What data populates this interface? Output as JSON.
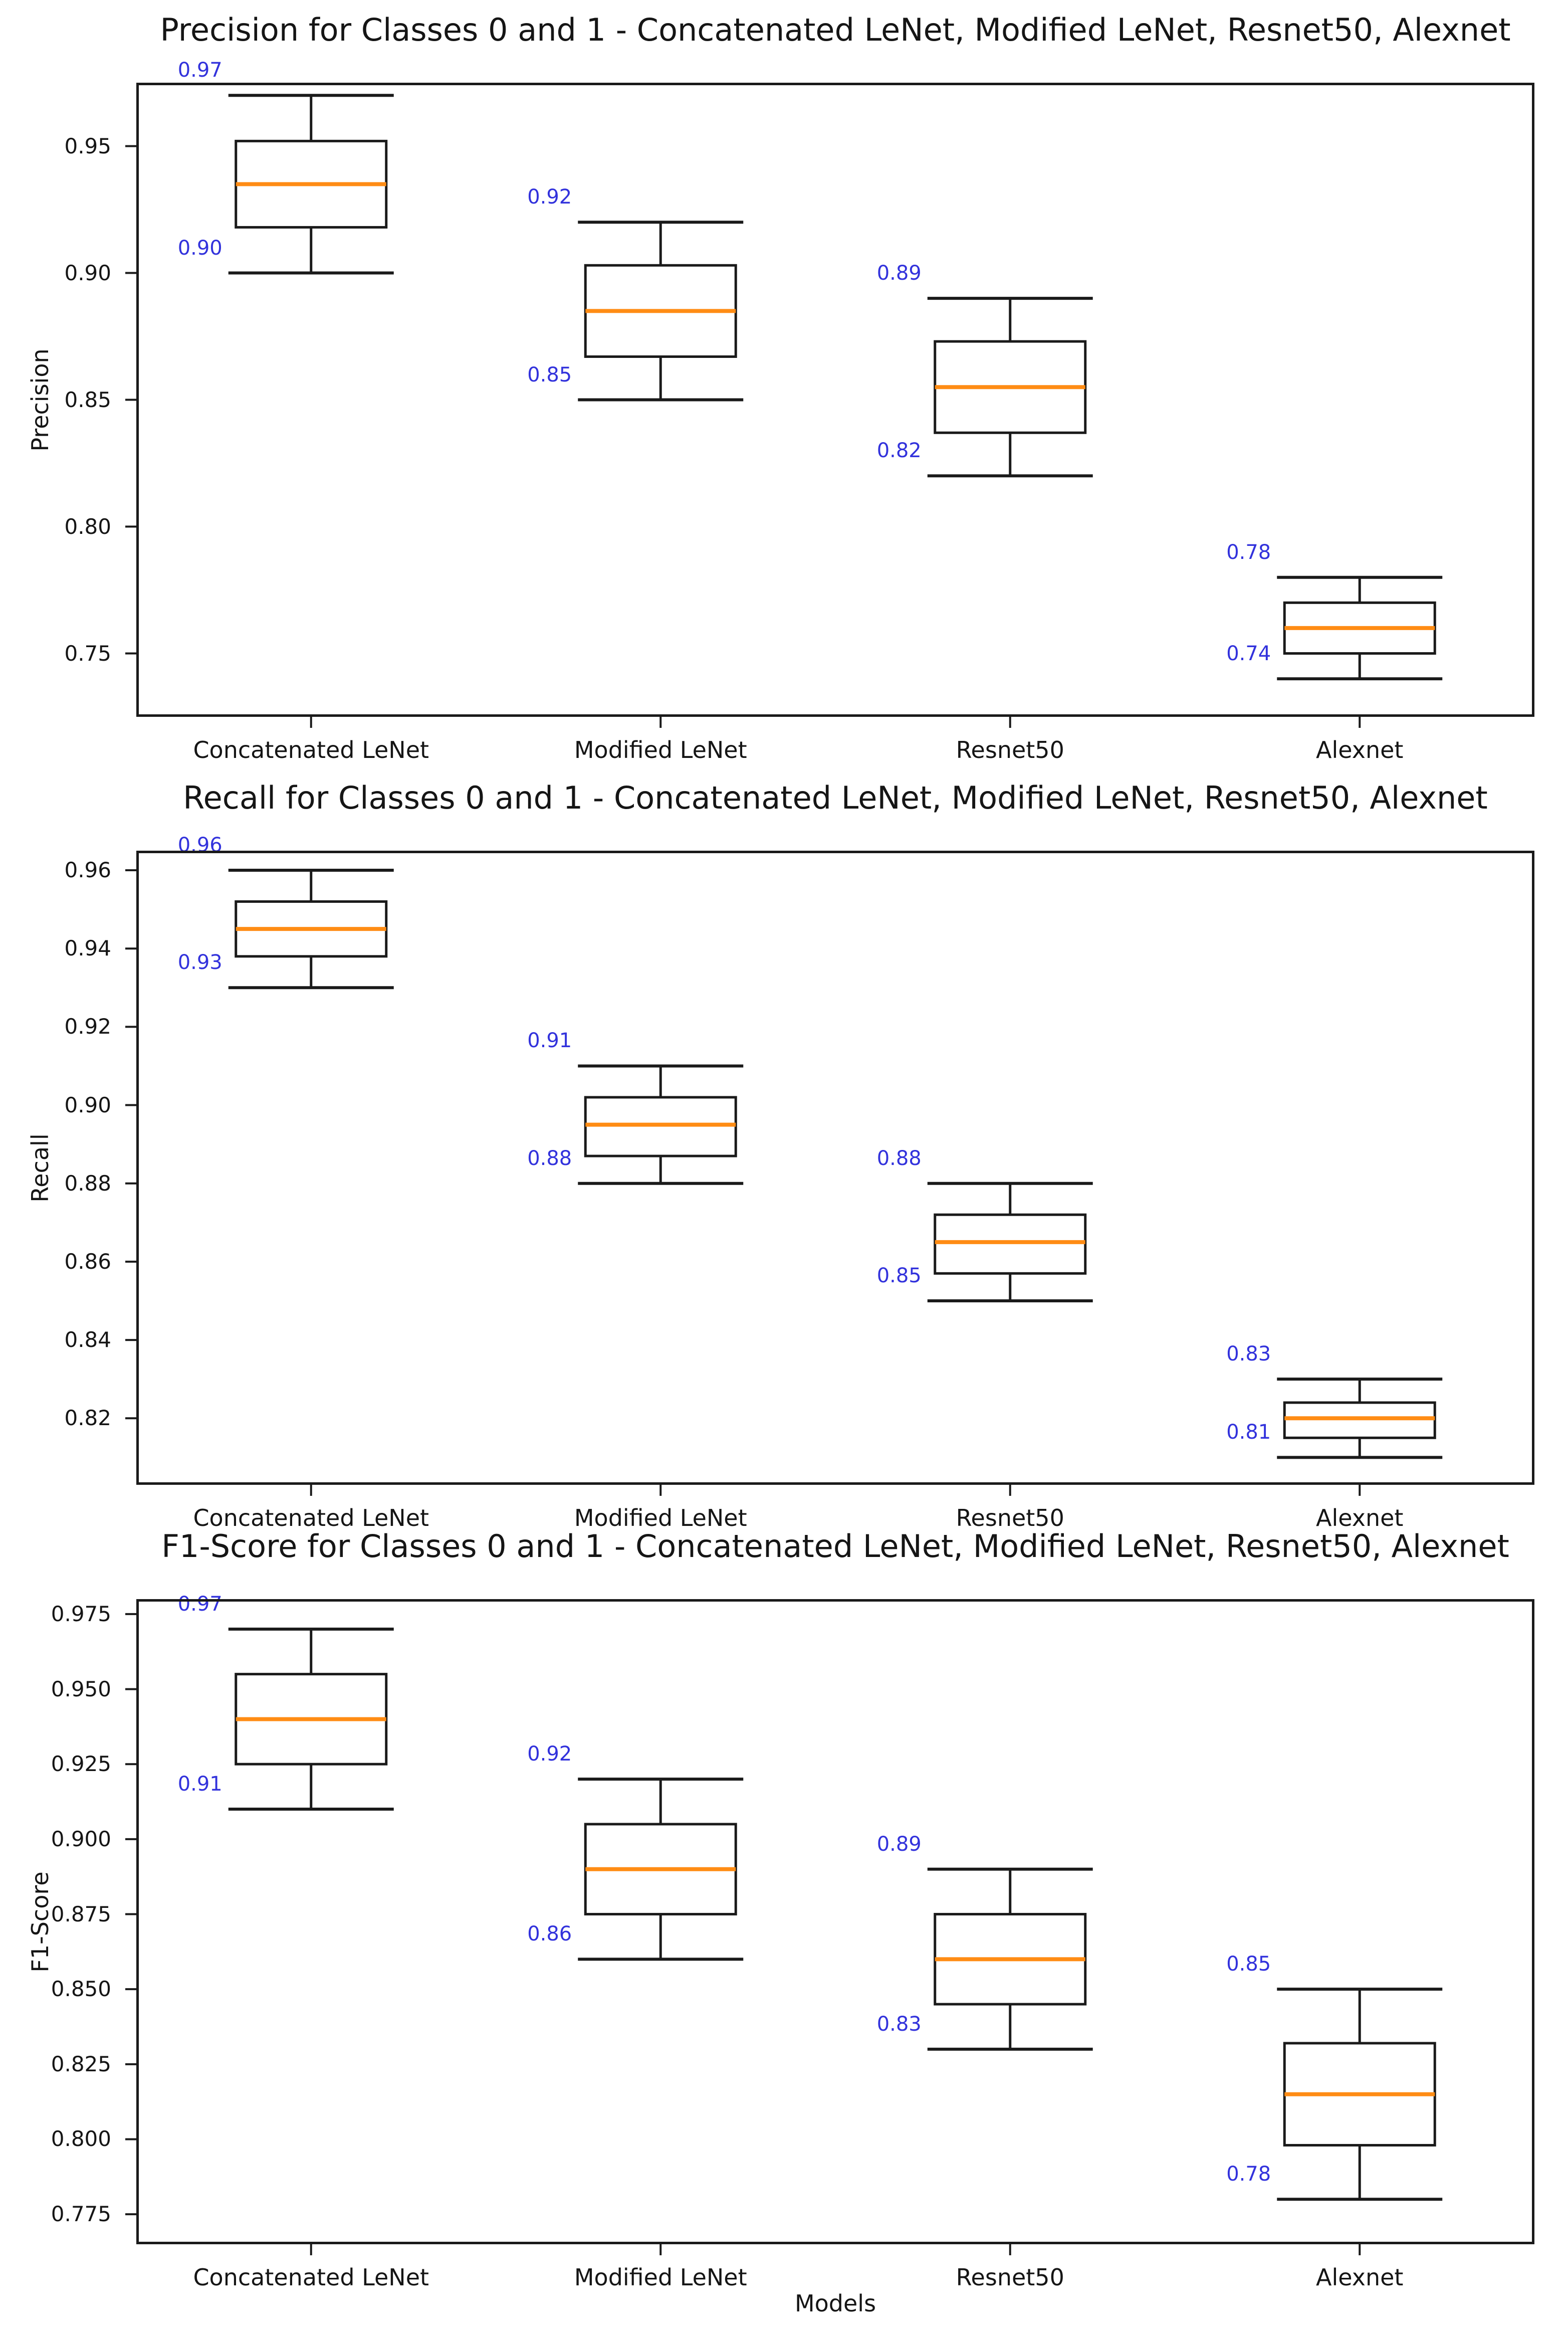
{
  "figure": {
    "background": "#ffffff",
    "text_color": "#151515",
    "box_line_color": "#1a1a1a",
    "median_color": "#ff8c14",
    "annotation_color": "#3232dc",
    "xlabel": "Models",
    "categories": [
      "Concatenated LeNet",
      "Modified LeNet",
      "Resnet50",
      "Alexnet"
    ]
  },
  "chart_data": [
    {
      "type": "boxplot",
      "title": "Precision for Classes 0 and 1 - Concatenated LeNet, Modified LeNet, Resnet50, Alexnet",
      "ylabel": "Precision",
      "xlabel": "",
      "grid": false,
      "legend": "none",
      "categories": [
        "Concatenated LeNet",
        "Modified LeNet",
        "Resnet50",
        "Alexnet"
      ],
      "yticks": [
        0.95,
        0.9,
        0.85,
        0.8,
        0.75
      ],
      "ytick_labels": [
        "0.95",
        "0.90",
        "0.85",
        "0.80",
        "0.75"
      ],
      "ylim": [
        0.725,
        0.975
      ],
      "series": [
        {
          "category": "Concatenated LeNet",
          "whislo": 0.9,
          "q1": 0.918,
          "med": 0.935,
          "q3": 0.952,
          "whishi": 0.97,
          "annotation_max": "0.97",
          "annotation_min": "0.90"
        },
        {
          "category": "Modified LeNet",
          "whislo": 0.85,
          "q1": 0.867,
          "med": 0.885,
          "q3": 0.903,
          "whishi": 0.92,
          "annotation_max": "0.92",
          "annotation_min": "0.85"
        },
        {
          "category": "Resnet50",
          "whislo": 0.82,
          "q1": 0.837,
          "med": 0.855,
          "q3": 0.873,
          "whishi": 0.89,
          "annotation_max": "0.89",
          "annotation_min": "0.82"
        },
        {
          "category": "Alexnet",
          "whislo": 0.74,
          "q1": 0.75,
          "med": 0.76,
          "q3": 0.77,
          "whishi": 0.78,
          "annotation_max": "0.78",
          "annotation_min": "0.74"
        }
      ]
    },
    {
      "type": "boxplot",
      "title": "Recall for Classes 0 and 1 - Concatenated LeNet, Modified LeNet, Resnet50, Alexnet",
      "ylabel": "Recall",
      "xlabel": "",
      "grid": false,
      "legend": "none",
      "categories": [
        "Concatenated LeNet",
        "Modified LeNet",
        "Resnet50",
        "Alexnet"
      ],
      "yticks": [
        0.96,
        0.94,
        0.92,
        0.9,
        0.88,
        0.86,
        0.84,
        0.82
      ],
      "ytick_labels": [
        "0.96",
        "0.94",
        "0.92",
        "0.90",
        "0.88",
        "0.86",
        "0.84",
        "0.82"
      ],
      "ylim": [
        0.803,
        0.965
      ],
      "series": [
        {
          "category": "Concatenated LeNet",
          "whislo": 0.93,
          "q1": 0.938,
          "med": 0.945,
          "q3": 0.952,
          "whishi": 0.96,
          "annotation_max": "0.96",
          "annotation_min": "0.93"
        },
        {
          "category": "Modified LeNet",
          "whislo": 0.88,
          "q1": 0.887,
          "med": 0.895,
          "q3": 0.902,
          "whishi": 0.91,
          "annotation_max": "0.91",
          "annotation_min": "0.88"
        },
        {
          "category": "Resnet50",
          "whislo": 0.85,
          "q1": 0.857,
          "med": 0.865,
          "q3": 0.872,
          "whishi": 0.88,
          "annotation_max": "0.88",
          "annotation_min": "0.85"
        },
        {
          "category": "Alexnet",
          "whislo": 0.81,
          "q1": 0.815,
          "med": 0.82,
          "q3": 0.824,
          "whishi": 0.83,
          "annotation_max": "0.83",
          "annotation_min": "0.81"
        }
      ]
    },
    {
      "type": "boxplot",
      "title": "F1-Score for Classes 0 and 1 - Concatenated LeNet, Modified LeNet, Resnet50, Alexnet",
      "ylabel": "F1-Score",
      "xlabel": "Models",
      "grid": false,
      "legend": "none",
      "categories": [
        "Concatenated LeNet",
        "Modified LeNet",
        "Resnet50",
        "Alexnet"
      ],
      "yticks": [
        0.975,
        0.95,
        0.925,
        0.9,
        0.875,
        0.85,
        0.825,
        0.8,
        0.775
      ],
      "ytick_labels": [
        "0.975",
        "0.950",
        "0.925",
        "0.900",
        "0.875",
        "0.850",
        "0.825",
        "0.800",
        "0.775"
      ],
      "ylim": [
        0.765,
        0.98
      ],
      "series": [
        {
          "category": "Concatenated LeNet",
          "whislo": 0.91,
          "q1": 0.925,
          "med": 0.94,
          "q3": 0.955,
          "whishi": 0.97,
          "annotation_max": "0.97",
          "annotation_min": "0.91"
        },
        {
          "category": "Modified LeNet",
          "whislo": 0.86,
          "q1": 0.875,
          "med": 0.89,
          "q3": 0.905,
          "whishi": 0.92,
          "annotation_max": "0.92",
          "annotation_min": "0.86"
        },
        {
          "category": "Resnet50",
          "whislo": 0.83,
          "q1": 0.845,
          "med": 0.86,
          "q3": 0.875,
          "whishi": 0.89,
          "annotation_max": "0.89",
          "annotation_min": "0.83"
        },
        {
          "category": "Alexnet",
          "whislo": 0.78,
          "q1": 0.798,
          "med": 0.815,
          "q3": 0.832,
          "whishi": 0.85,
          "annotation_max": "0.85",
          "annotation_min": "0.78"
        }
      ]
    }
  ]
}
